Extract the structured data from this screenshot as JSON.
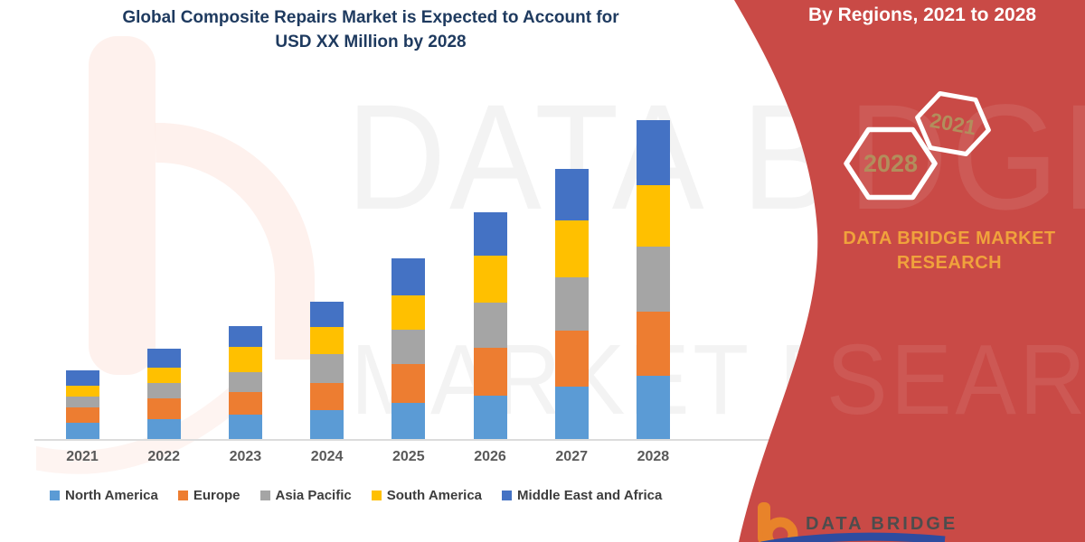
{
  "title": {
    "line1": "Global Composite Repairs Market is Expected to Account for",
    "line2": "USD XX Million by 2028",
    "color": "#1e3a5f"
  },
  "banner": {
    "color": "#c94a46",
    "heading": "By Regions, 2021 to 2028",
    "hexagons": [
      {
        "label": "2028"
      },
      {
        "label": "2021"
      }
    ],
    "hex_label_color": "#b28e5c",
    "brand_line1": "DATA BRIDGE MARKET",
    "brand_line2": "RESEARCH",
    "brand_color": "#f0a23c",
    "logo_text": "DATA BRIDGE",
    "logo_text_color": "#4d4d4d",
    "logo_orange": "#e8832a",
    "logo_blue": "#2e4ca0"
  },
  "watermark": {
    "line1_left": "DATA BRI",
    "line1_right": "DGE",
    "line2_left": "MARKET RE",
    "line2_right": "SEARCH"
  },
  "chart_data": {
    "type": "bar",
    "stacked": true,
    "title": "Global Composite Repairs Market is Expected to Account for USD XX Million by 2028",
    "xlabel": "",
    "ylabel": "",
    "y_axis_visible": false,
    "values_unit": "relative units (source labels values as USD XX Million, no numeric axis shown)",
    "legend_position": "bottom",
    "axis_line_color": "#dcdcdc",
    "categories": [
      "2021",
      "2022",
      "2023",
      "2024",
      "2025",
      "2026",
      "2027",
      "2028"
    ],
    "series": [
      {
        "name": "North America",
        "key": "north-america",
        "color": "#5b9bd5",
        "values": [
          18,
          22,
          27,
          32,
          40,
          48,
          58,
          70
        ]
      },
      {
        "name": "Europe",
        "key": "europe",
        "color": "#ed7d31",
        "values": [
          17,
          23,
          25,
          30,
          43,
          53,
          62,
          71
        ]
      },
      {
        "name": "Asia Pacific",
        "key": "asia-pacific",
        "color": "#a5a5a5",
        "values": [
          12,
          17,
          22,
          32,
          38,
          50,
          59,
          72
        ]
      },
      {
        "name": "South America",
        "key": "south-america",
        "color": "#ffc000",
        "values": [
          12,
          17,
          28,
          30,
          38,
          52,
          63,
          68
        ]
      },
      {
        "name": "Middle East and Africa",
        "key": "middle-east-and-africa",
        "color": "#4472c4",
        "values": [
          17,
          21,
          23,
          28,
          41,
          48,
          57,
          72
        ]
      }
    ],
    "totals": [
      76,
      100,
      125,
      152,
      200,
      251,
      299,
      353
    ]
  }
}
